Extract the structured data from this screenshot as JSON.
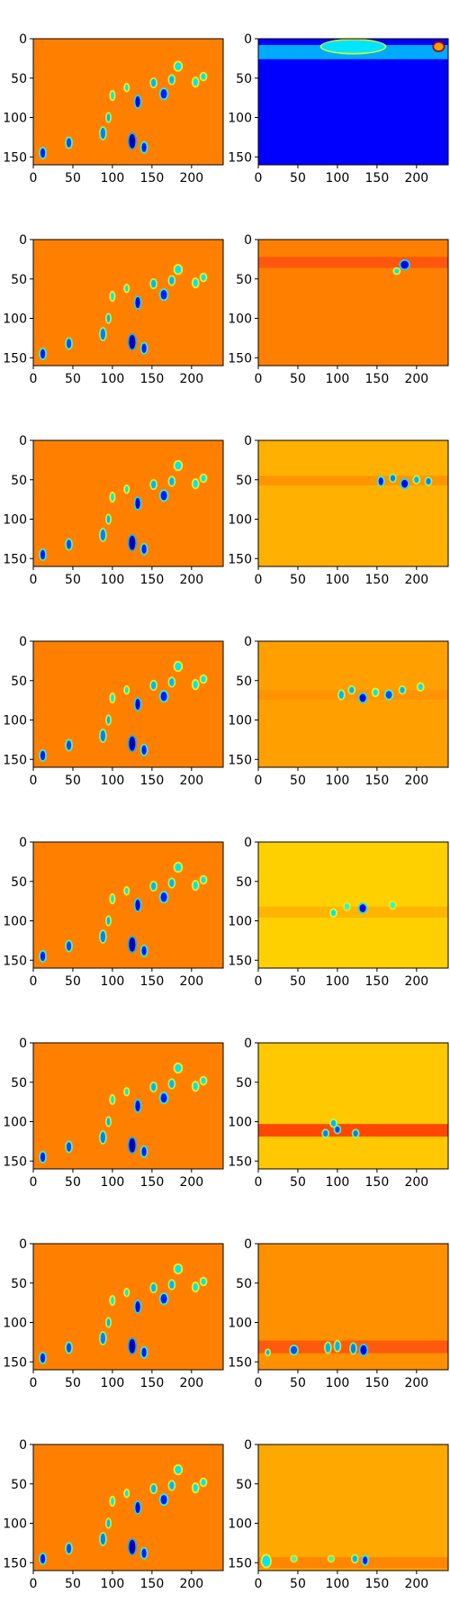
{
  "chart_data": {
    "type": "heatmap",
    "layout": {
      "rows": 8,
      "cols": 2
    },
    "colormap": "jet",
    "x_ticks": [
      0,
      50,
      100,
      150,
      200
    ],
    "y_ticks": [
      0,
      50,
      100,
      150
    ],
    "xlim": [
      0,
      240
    ],
    "ylim": [
      160,
      0
    ],
    "panels": [
      {
        "row": 0,
        "col": 0,
        "background": "#ff8000",
        "blobs": [
          [
            12,
            145,
            3,
            6,
            0.15
          ],
          [
            45,
            132,
            3,
            6,
            0.2
          ],
          [
            88,
            120,
            3,
            7,
            0.25
          ],
          [
            95,
            100,
            2,
            5,
            0.3
          ],
          [
            100,
            72,
            2,
            5,
            0.35
          ],
          [
            118,
            62,
            2,
            4,
            0.35
          ],
          [
            125,
            130,
            4,
            9,
            0.05
          ],
          [
            132,
            80,
            3,
            7,
            0.1
          ],
          [
            140,
            138,
            3,
            6,
            0.15
          ],
          [
            152,
            56,
            3,
            5,
            0.3
          ],
          [
            165,
            70,
            4,
            6,
            0.15
          ],
          [
            175,
            52,
            3,
            5,
            0.3
          ],
          [
            183,
            35,
            4,
            5,
            0.35
          ],
          [
            205,
            55,
            3,
            5,
            0.35
          ],
          [
            215,
            48,
            3,
            4,
            0.35
          ]
        ]
      },
      {
        "row": 0,
        "col": 1,
        "background": "#0000ff",
        "band": {
          "y": 8,
          "h": 18,
          "color": "#00c8ff"
        },
        "blobs": [
          [
            228,
            10,
            6,
            5,
            0.72
          ],
          [
            120,
            10,
            40,
            8,
            0.35
          ]
        ]
      },
      {
        "row": 1,
        "col": 0,
        "background": "#ff8000",
        "blobs": [
          [
            12,
            145,
            3,
            6,
            0.15
          ],
          [
            45,
            132,
            3,
            6,
            0.2
          ],
          [
            88,
            120,
            3,
            7,
            0.25
          ],
          [
            95,
            100,
            2,
            5,
            0.3
          ],
          [
            100,
            72,
            2,
            5,
            0.35
          ],
          [
            118,
            62,
            2,
            4,
            0.35
          ],
          [
            125,
            130,
            4,
            9,
            0.05
          ],
          [
            132,
            80,
            3,
            7,
            0.1
          ],
          [
            140,
            138,
            3,
            6,
            0.15
          ],
          [
            152,
            56,
            3,
            5,
            0.3
          ],
          [
            165,
            70,
            4,
            6,
            0.15
          ],
          [
            175,
            52,
            3,
            5,
            0.3
          ],
          [
            183,
            38,
            4,
            5,
            0.35
          ],
          [
            205,
            55,
            3,
            5,
            0.35
          ],
          [
            215,
            48,
            3,
            4,
            0.35
          ]
        ]
      },
      {
        "row": 1,
        "col": 1,
        "background": "#ff8000",
        "band": {
          "y": 22,
          "h": 14,
          "color": "#ff5010"
        },
        "blobs": [
          [
            185,
            32,
            5,
            5,
            0.1
          ],
          [
            175,
            40,
            3,
            3,
            0.35
          ]
        ]
      },
      {
        "row": 2,
        "col": 0,
        "background": "#ff8000",
        "blobs": [
          [
            12,
            145,
            3,
            6,
            0.15
          ],
          [
            45,
            132,
            3,
            6,
            0.2
          ],
          [
            88,
            120,
            3,
            7,
            0.25
          ],
          [
            95,
            100,
            2,
            5,
            0.3
          ],
          [
            100,
            72,
            2,
            5,
            0.35
          ],
          [
            118,
            62,
            2,
            4,
            0.35
          ],
          [
            125,
            130,
            4,
            9,
            0.05
          ],
          [
            132,
            80,
            3,
            7,
            0.1
          ],
          [
            140,
            138,
            3,
            6,
            0.15
          ],
          [
            152,
            56,
            3,
            5,
            0.3
          ],
          [
            165,
            70,
            4,
            6,
            0.15
          ],
          [
            175,
            52,
            3,
            5,
            0.3
          ],
          [
            183,
            32,
            4,
            5,
            0.35
          ],
          [
            205,
            55,
            3,
            5,
            0.35
          ],
          [
            215,
            48,
            3,
            4,
            0.35
          ]
        ]
      },
      {
        "row": 2,
        "col": 1,
        "background": "#ffb000",
        "band": {
          "y": 45,
          "h": 12,
          "color": "#ff9000"
        },
        "blobs": [
          [
            155,
            52,
            3,
            5,
            0.15
          ],
          [
            170,
            48,
            3,
            4,
            0.25
          ],
          [
            185,
            55,
            4,
            5,
            0.1
          ],
          [
            200,
            50,
            3,
            4,
            0.3
          ],
          [
            215,
            52,
            3,
            4,
            0.25
          ]
        ]
      },
      {
        "row": 3,
        "col": 0,
        "background": "#ff8000",
        "blobs": [
          [
            12,
            145,
            3,
            6,
            0.15
          ],
          [
            45,
            132,
            3,
            6,
            0.2
          ],
          [
            88,
            120,
            3,
            7,
            0.25
          ],
          [
            95,
            100,
            2,
            5,
            0.3
          ],
          [
            100,
            72,
            2,
            5,
            0.35
          ],
          [
            118,
            62,
            2,
            4,
            0.35
          ],
          [
            125,
            130,
            4,
            9,
            0.05
          ],
          [
            132,
            80,
            3,
            7,
            0.1
          ],
          [
            140,
            138,
            3,
            6,
            0.15
          ],
          [
            152,
            56,
            3,
            5,
            0.3
          ],
          [
            165,
            70,
            4,
            6,
            0.15
          ],
          [
            175,
            52,
            3,
            5,
            0.3
          ],
          [
            183,
            32,
            4,
            5,
            0.35
          ],
          [
            205,
            55,
            3,
            5,
            0.35
          ],
          [
            215,
            48,
            3,
            4,
            0.35
          ]
        ]
      },
      {
        "row": 3,
        "col": 1,
        "background": "#ffa000",
        "band": {
          "y": 62,
          "h": 12,
          "color": "#ff9000"
        },
        "blobs": [
          [
            105,
            68,
            3,
            5,
            0.3
          ],
          [
            118,
            62,
            3,
            4,
            0.3
          ],
          [
            132,
            72,
            4,
            5,
            0.1
          ],
          [
            148,
            65,
            3,
            4,
            0.35
          ],
          [
            165,
            68,
            4,
            5,
            0.2
          ],
          [
            182,
            62,
            3,
            4,
            0.3
          ],
          [
            205,
            58,
            3,
            4,
            0.35
          ]
        ]
      },
      {
        "row": 4,
        "col": 0,
        "background": "#ff8000",
        "blobs": [
          [
            12,
            145,
            3,
            6,
            0.15
          ],
          [
            45,
            132,
            3,
            6,
            0.2
          ],
          [
            88,
            120,
            3,
            7,
            0.25
          ],
          [
            95,
            100,
            2,
            5,
            0.3
          ],
          [
            100,
            72,
            2,
            5,
            0.35
          ],
          [
            118,
            62,
            2,
            4,
            0.35
          ],
          [
            125,
            130,
            4,
            9,
            0.05
          ],
          [
            132,
            80,
            3,
            7,
            0.1
          ],
          [
            140,
            138,
            3,
            6,
            0.15
          ],
          [
            152,
            56,
            3,
            5,
            0.3
          ],
          [
            165,
            70,
            4,
            6,
            0.15
          ],
          [
            175,
            52,
            3,
            5,
            0.3
          ],
          [
            183,
            32,
            4,
            5,
            0.35
          ],
          [
            205,
            55,
            3,
            5,
            0.35
          ],
          [
            215,
            48,
            3,
            4,
            0.35
          ]
        ]
      },
      {
        "row": 4,
        "col": 1,
        "background": "#ffd000",
        "band": {
          "y": 82,
          "h": 14,
          "color": "#ffb000"
        },
        "blobs": [
          [
            95,
            90,
            3,
            4,
            0.35
          ],
          [
            112,
            82,
            3,
            4,
            0.4
          ],
          [
            132,
            84,
            4,
            5,
            0.1
          ],
          [
            170,
            80,
            3,
            4,
            0.4
          ]
        ]
      },
      {
        "row": 5,
        "col": 0,
        "background": "#ff8000",
        "blobs": [
          [
            12,
            145,
            3,
            6,
            0.15
          ],
          [
            45,
            132,
            3,
            6,
            0.2
          ],
          [
            88,
            120,
            3,
            7,
            0.25
          ],
          [
            95,
            100,
            2,
            5,
            0.3
          ],
          [
            100,
            72,
            2,
            5,
            0.35
          ],
          [
            118,
            62,
            2,
            4,
            0.35
          ],
          [
            125,
            130,
            4,
            9,
            0.05
          ],
          [
            132,
            80,
            3,
            7,
            0.1
          ],
          [
            140,
            138,
            3,
            6,
            0.15
          ],
          [
            152,
            56,
            3,
            5,
            0.3
          ],
          [
            165,
            70,
            4,
            6,
            0.15
          ],
          [
            175,
            52,
            3,
            5,
            0.3
          ],
          [
            183,
            32,
            4,
            5,
            0.35
          ],
          [
            205,
            55,
            3,
            5,
            0.35
          ],
          [
            215,
            48,
            3,
            4,
            0.35
          ]
        ]
      },
      {
        "row": 5,
        "col": 1,
        "background": "#ffc800",
        "band": {
          "y": 103,
          "h": 16,
          "color": "#ff3000"
        },
        "blobs": [
          [
            85,
            115,
            3,
            4,
            0.25
          ],
          [
            95,
            102,
            3,
            4,
            0.3
          ],
          [
            100,
            110,
            3,
            4,
            0.2
          ],
          [
            123,
            115,
            3,
            4,
            0.25
          ]
        ]
      },
      {
        "row": 6,
        "col": 0,
        "background": "#ff8000",
        "blobs": [
          [
            12,
            145,
            3,
            6,
            0.15
          ],
          [
            45,
            132,
            3,
            6,
            0.2
          ],
          [
            88,
            120,
            3,
            7,
            0.25
          ],
          [
            95,
            100,
            2,
            5,
            0.3
          ],
          [
            100,
            72,
            2,
            5,
            0.35
          ],
          [
            118,
            62,
            2,
            4,
            0.35
          ],
          [
            125,
            130,
            4,
            9,
            0.05
          ],
          [
            132,
            80,
            3,
            7,
            0.1
          ],
          [
            140,
            138,
            3,
            6,
            0.15
          ],
          [
            152,
            56,
            3,
            5,
            0.3
          ],
          [
            165,
            70,
            4,
            6,
            0.15
          ],
          [
            175,
            52,
            3,
            5,
            0.3
          ],
          [
            183,
            32,
            4,
            5,
            0.35
          ],
          [
            205,
            55,
            3,
            5,
            0.35
          ],
          [
            215,
            48,
            3,
            4,
            0.35
          ]
        ]
      },
      {
        "row": 6,
        "col": 1,
        "background": "#ff9000",
        "band": {
          "y": 123,
          "h": 16,
          "color": "#ff5010"
        },
        "blobs": [
          [
            12,
            138,
            2,
            3,
            0.3
          ],
          [
            45,
            135,
            4,
            5,
            0.2
          ],
          [
            88,
            132,
            3,
            6,
            0.3
          ],
          [
            100,
            130,
            3,
            6,
            0.3
          ],
          [
            120,
            133,
            3,
            6,
            0.25
          ],
          [
            133,
            135,
            4,
            6,
            0.1
          ]
        ]
      },
      {
        "row": 7,
        "col": 0,
        "background": "#ff8000",
        "blobs": [
          [
            12,
            145,
            3,
            6,
            0.15
          ],
          [
            45,
            132,
            3,
            6,
            0.2
          ],
          [
            88,
            120,
            3,
            7,
            0.25
          ],
          [
            95,
            100,
            2,
            5,
            0.3
          ],
          [
            100,
            72,
            2,
            5,
            0.35
          ],
          [
            118,
            62,
            2,
            4,
            0.35
          ],
          [
            125,
            130,
            4,
            9,
            0.05
          ],
          [
            132,
            80,
            3,
            7,
            0.1
          ],
          [
            140,
            138,
            3,
            6,
            0.15
          ],
          [
            152,
            56,
            3,
            5,
            0.3
          ],
          [
            165,
            70,
            4,
            6,
            0.15
          ],
          [
            175,
            52,
            3,
            5,
            0.3
          ],
          [
            183,
            32,
            4,
            5,
            0.35
          ],
          [
            205,
            55,
            3,
            5,
            0.35
          ],
          [
            215,
            48,
            3,
            4,
            0.35
          ]
        ]
      },
      {
        "row": 7,
        "col": 1,
        "background": "#ffa800",
        "band": {
          "y": 143,
          "h": 14,
          "color": "#ff8000"
        },
        "blobs": [
          [
            10,
            148,
            5,
            7,
            0.35
          ],
          [
            45,
            145,
            3,
            3,
            0.4
          ],
          [
            92,
            145,
            3,
            3,
            0.4
          ],
          [
            122,
            145,
            3,
            4,
            0.3
          ],
          [
            135,
            147,
            3,
            5,
            0.15
          ]
        ]
      }
    ]
  }
}
